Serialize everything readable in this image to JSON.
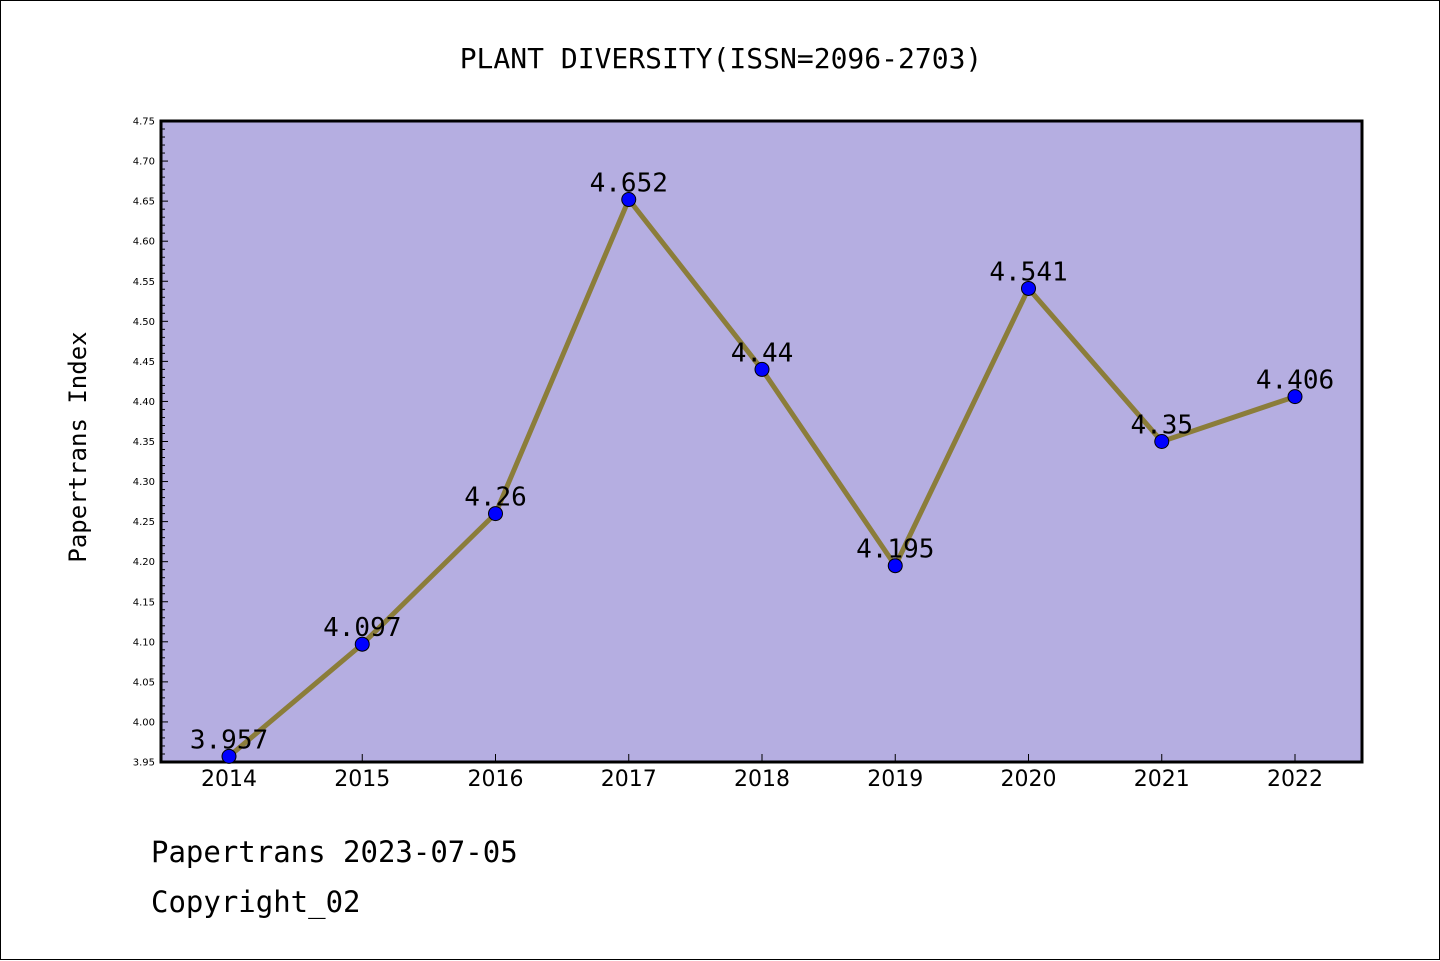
{
  "chart_data": {
    "type": "line",
    "title": "PLANT DIVERSITY(ISSN=2096-2703)",
    "xlabel": "",
    "ylabel": "Papertrans Index",
    "categories": [
      "2014",
      "2015",
      "2016",
      "2017",
      "2018",
      "2019",
      "2020",
      "2021",
      "2022"
    ],
    "series": [
      {
        "values": [
          3.957,
          4.097,
          4.26,
          4.652,
          4.44,
          4.195,
          4.541,
          4.35,
          4.406
        ],
        "labels": [
          "3.957",
          "4.097",
          "4.26",
          "4.652",
          "4.44",
          "4.195",
          "4.541",
          "4.35",
          "4.406"
        ]
      }
    ],
    "ylim": [
      3.95,
      4.75
    ],
    "yticks": [
      "3.95",
      "4.00",
      "4.05",
      "4.10",
      "4.15",
      "4.20",
      "4.25",
      "4.30",
      "4.35",
      "4.40",
      "4.45",
      "4.50",
      "4.55",
      "4.60",
      "4.65",
      "4.70",
      "4.75"
    ],
    "grid": false,
    "legend": "none",
    "colors": {
      "plot_background": "#b5aee1",
      "line": "#8b7d3a",
      "marker": "#0000ff"
    }
  },
  "footer": {
    "line1": "Papertrans 2023-07-05",
    "line2": "Copyright_02"
  }
}
